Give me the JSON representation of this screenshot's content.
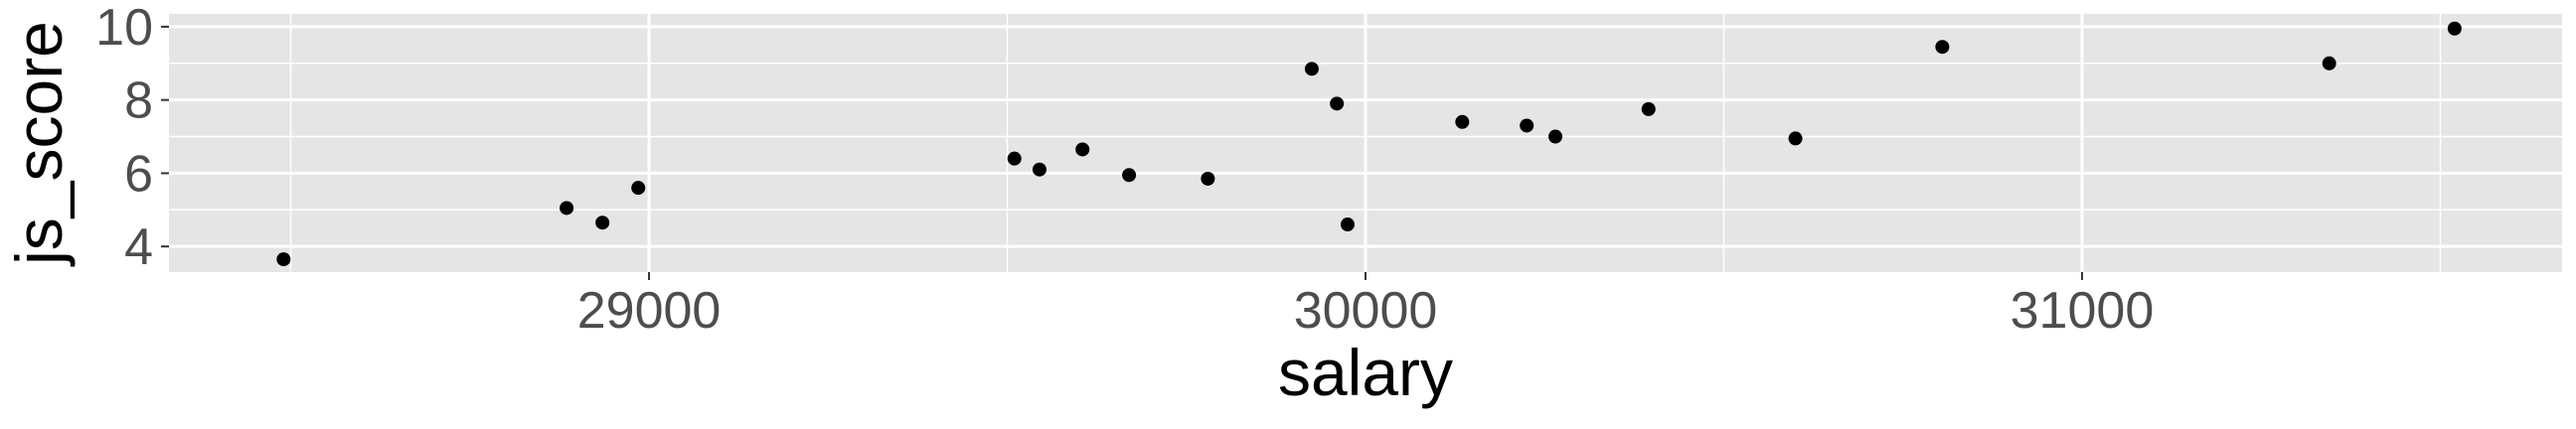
{
  "chart_data": {
    "type": "scatter",
    "title": "",
    "xlabel": "salary",
    "ylabel": "js_score",
    "xlim": [
      28330,
      31670
    ],
    "ylim": [
      3.3,
      10.35
    ],
    "x_ticks": [
      29000,
      30000,
      31000
    ],
    "y_ticks": [
      4,
      6,
      8,
      10
    ],
    "x_tick_labels": [
      "29000",
      "30000",
      "31000"
    ],
    "y_tick_labels": [
      "4",
      "6",
      "8",
      "10"
    ],
    "grid": true,
    "legend": "none",
    "colors": {
      "panel_background": "#e5e5e5",
      "grid_line": "#ffffff",
      "point": "#000000",
      "tick_label": "#4d4d4d"
    },
    "points": [
      {
        "x": 28490,
        "y": 3.65
      },
      {
        "x": 28885,
        "y": 5.05
      },
      {
        "x": 28935,
        "y": 4.65
      },
      {
        "x": 28985,
        "y": 5.6
      },
      {
        "x": 29510,
        "y": 6.4
      },
      {
        "x": 29545,
        "y": 6.1
      },
      {
        "x": 29605,
        "y": 6.65
      },
      {
        "x": 29670,
        "y": 5.95
      },
      {
        "x": 29780,
        "y": 5.85
      },
      {
        "x": 29925,
        "y": 8.85
      },
      {
        "x": 29960,
        "y": 7.9
      },
      {
        "x": 29975,
        "y": 4.6
      },
      {
        "x": 30135,
        "y": 7.4
      },
      {
        "x": 30225,
        "y": 7.3
      },
      {
        "x": 30265,
        "y": 7.0
      },
      {
        "x": 30395,
        "y": 7.75
      },
      {
        "x": 30600,
        "y": 6.95
      },
      {
        "x": 30805,
        "y": 9.45
      },
      {
        "x": 31345,
        "y": 9.0
      },
      {
        "x": 31520,
        "y": 9.95
      }
    ]
  }
}
